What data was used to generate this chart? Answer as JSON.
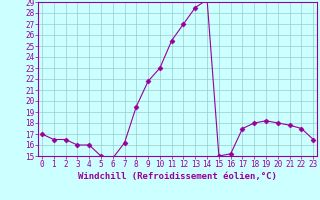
{
  "x": [
    0,
    1,
    2,
    3,
    4,
    5,
    6,
    7,
    8,
    9,
    10,
    11,
    12,
    13,
    14,
    15,
    16,
    17,
    18,
    19,
    20,
    21,
    22,
    23
  ],
  "y": [
    17.0,
    16.5,
    16.5,
    16.0,
    16.0,
    15.0,
    14.8,
    16.2,
    19.5,
    21.8,
    23.0,
    25.5,
    27.0,
    28.5,
    29.2,
    15.0,
    15.2,
    17.5,
    18.0,
    18.2,
    18.0,
    17.8,
    17.5,
    16.5
  ],
  "line_color": "#990099",
  "marker": "D",
  "marker_size": 2.5,
  "bg_color": "#ccffff",
  "grid_color": "#99cccc",
  "xlabel": "Windchill (Refroidissement éolien,°C)",
  "xlabel_color": "#990099",
  "ylim": [
    15,
    29
  ],
  "yticks": [
    15,
    16,
    17,
    18,
    19,
    20,
    21,
    22,
    23,
    24,
    25,
    26,
    27,
    28,
    29
  ],
  "xticks": [
    0,
    1,
    2,
    3,
    4,
    5,
    6,
    7,
    8,
    9,
    10,
    11,
    12,
    13,
    14,
    15,
    16,
    17,
    18,
    19,
    20,
    21,
    22,
    23
  ],
  "tick_color": "#990099",
  "tick_fontsize": 5.5,
  "xlabel_fontsize": 6.5,
  "line_width": 0.8
}
